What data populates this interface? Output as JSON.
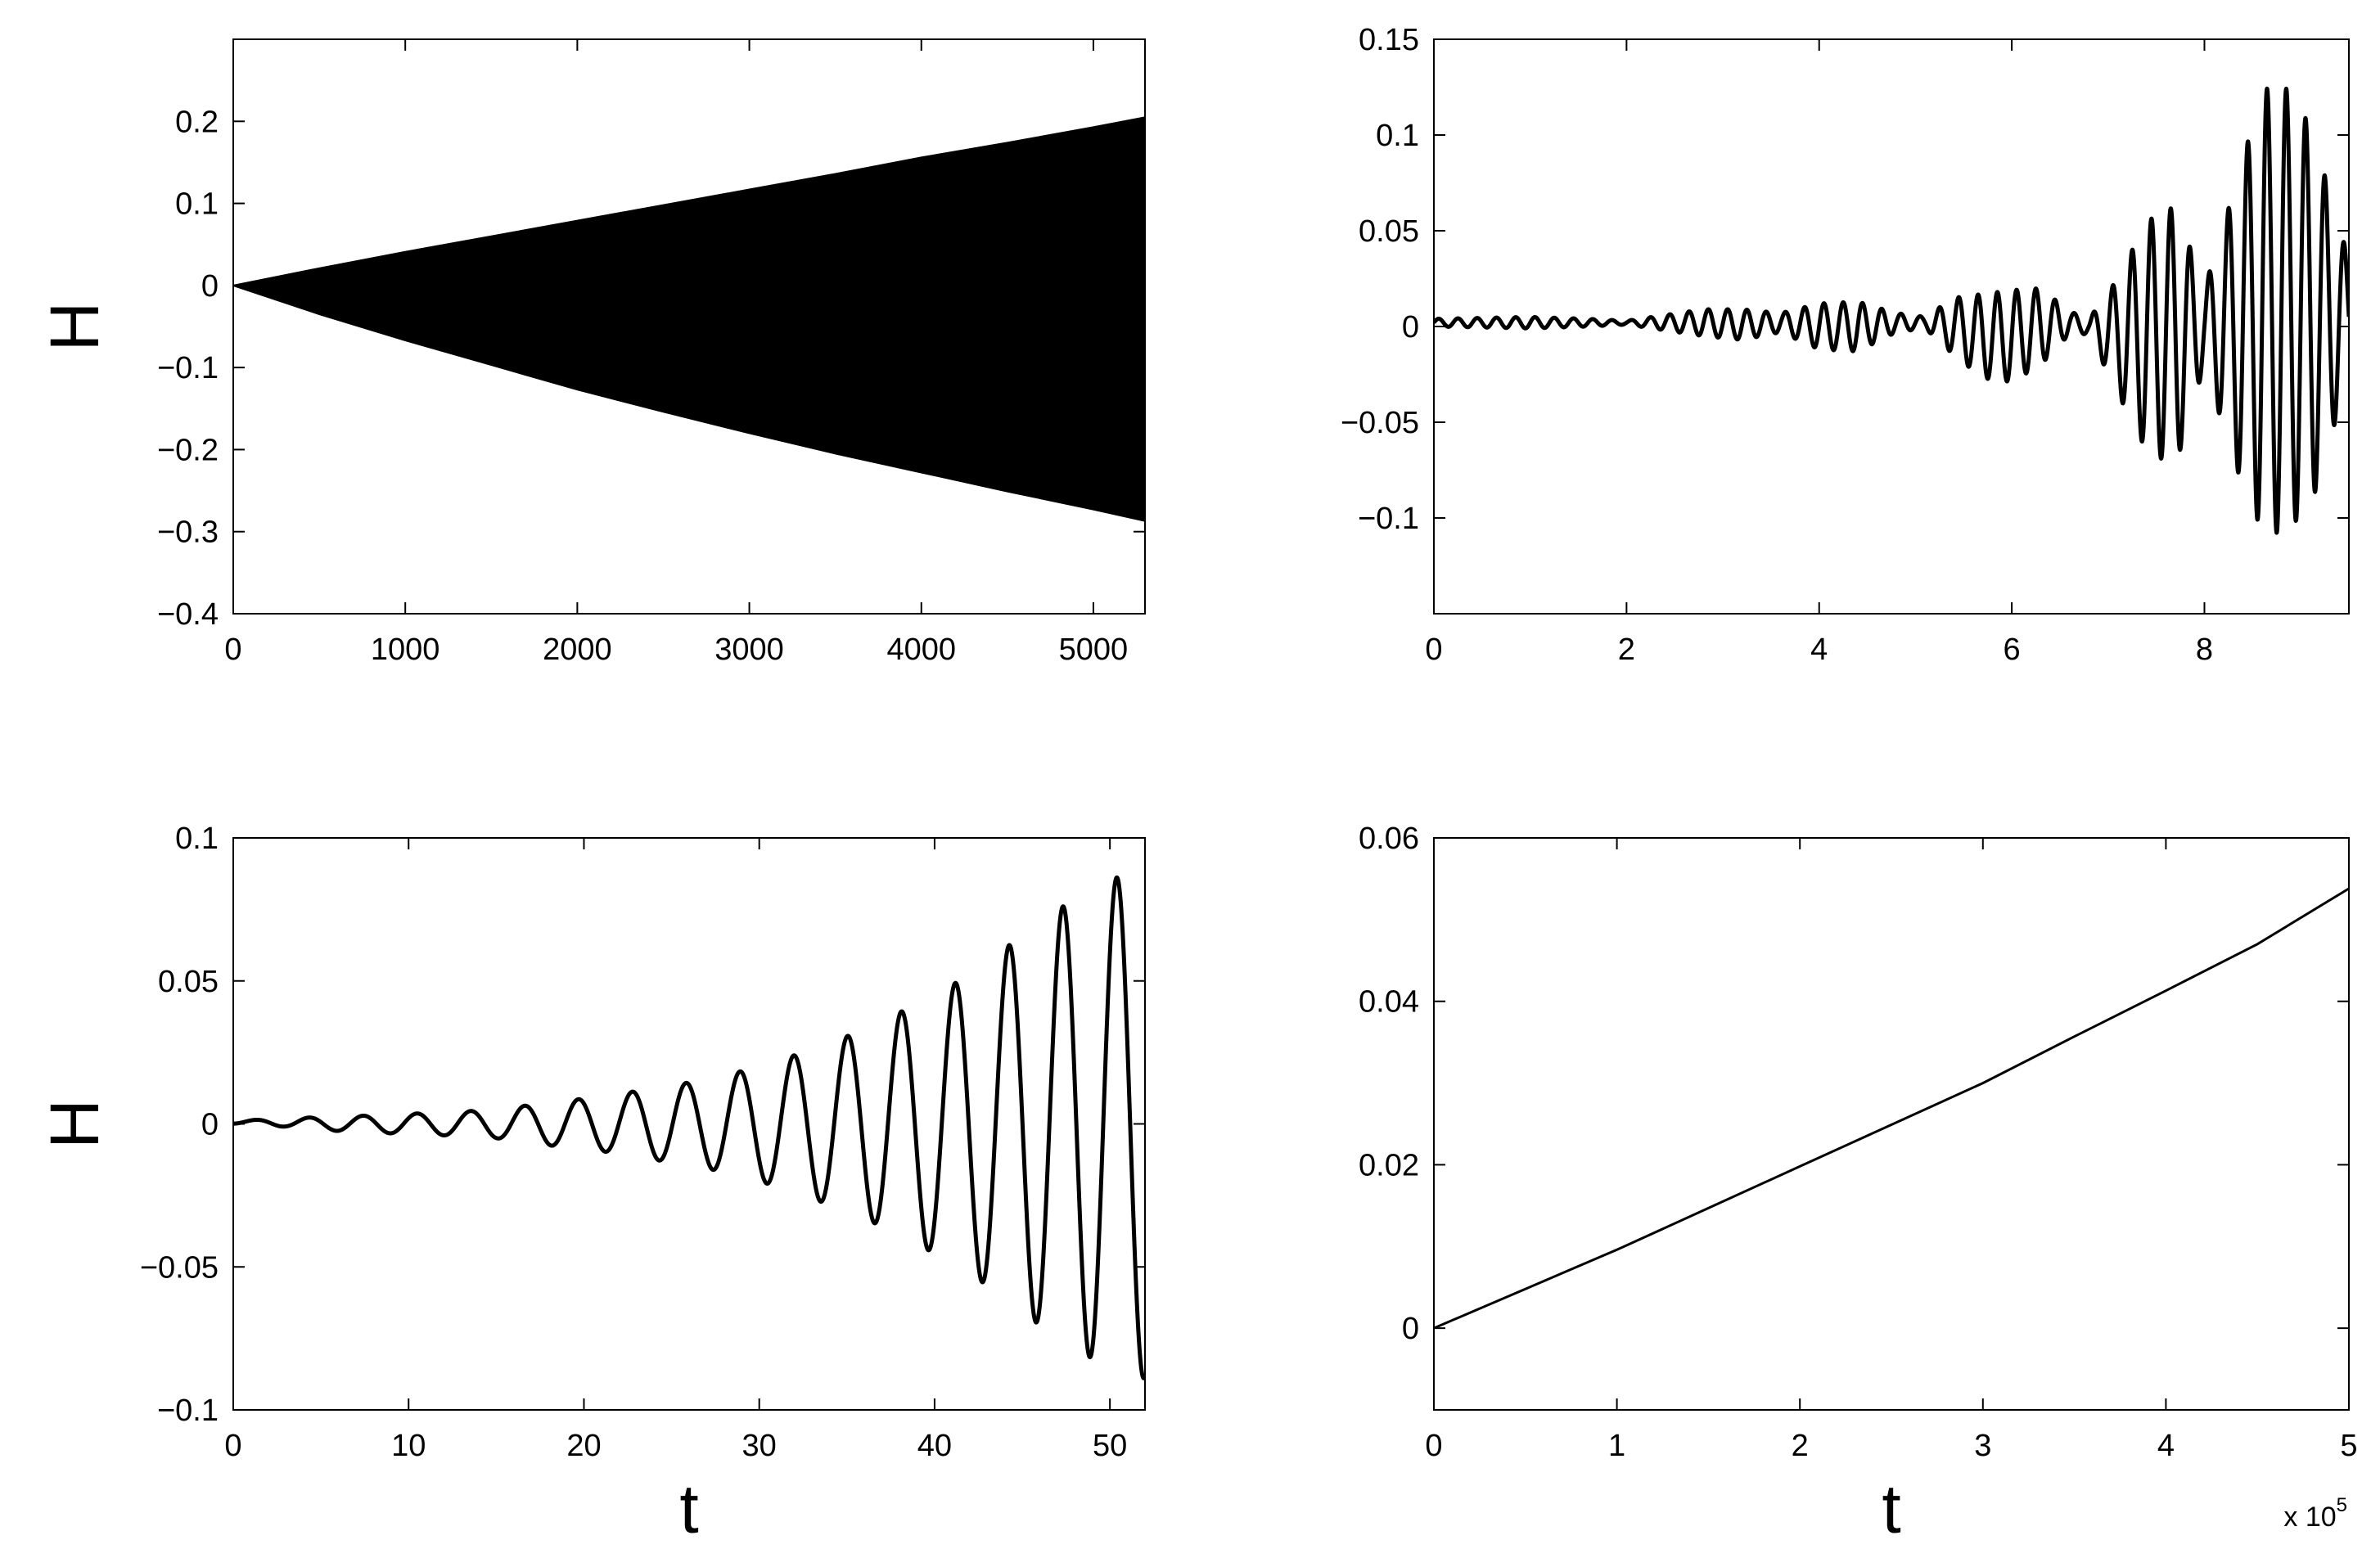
{
  "figure": {
    "panels": 4,
    "ylabel": "H",
    "xlabel": "t",
    "line_color": "#000000",
    "background": "#ffffff"
  },
  "chart_data": [
    {
      "id": "top-left",
      "type": "line",
      "style": "dense-oscillation-envelope",
      "xlim": [
        0,
        5300
      ],
      "ylim": [
        -0.4,
        0.3
      ],
      "xticks": [
        0,
        1000,
        2000,
        3000,
        4000,
        5000
      ],
      "xtick_labels": [
        "0",
        "1000",
        "2000",
        "3000",
        "4000",
        "5000"
      ],
      "yticks": [
        -0.4,
        -0.3,
        -0.2,
        -0.1,
        0,
        0.1,
        0.2
      ],
      "ytick_labels": [
        "−0.4",
        "−0.3",
        "−0.2",
        "−0.1",
        "0",
        "0.1",
        "0.2"
      ],
      "ylabel": "H",
      "xlabel": "",
      "envelope": {
        "x": [
          0,
          500,
          1000,
          1500,
          2000,
          2500,
          3000,
          3500,
          4000,
          4500,
          5000,
          5300
        ],
        "upper": [
          0.0,
          0.021,
          0.041,
          0.06,
          0.079,
          0.098,
          0.117,
          0.136,
          0.156,
          0.174,
          0.193,
          0.205
        ],
        "lower": [
          0.0,
          -0.035,
          -0.067,
          -0.097,
          -0.127,
          -0.154,
          -0.18,
          -0.205,
          -0.228,
          -0.251,
          -0.273,
          -0.287
        ]
      }
    },
    {
      "id": "top-right",
      "type": "line",
      "style": "oscillation",
      "xlim": [
        0,
        9.5
      ],
      "ylim": [
        -0.15,
        0.15
      ],
      "xticks": [
        0,
        2,
        4,
        6,
        8
      ],
      "xtick_labels": [
        "0",
        "2",
        "4",
        "6",
        "8"
      ],
      "yticks": [
        -0.1,
        -0.05,
        0,
        0.05,
        0.1,
        0.15
      ],
      "ytick_labels": [
        "−0.1",
        "−0.05",
        "0",
        "0.05",
        "0.1",
        "0.15"
      ],
      "ylabel": "",
      "xlabel": "",
      "signal": {
        "period": 0.2,
        "envelope_x": [
          0,
          1.0,
          1.6,
          2.0,
          2.4,
          2.8,
          3.2,
          3.6,
          4.0,
          4.4,
          4.8,
          5.1,
          5.4,
          5.7,
          6.0,
          6.3,
          6.6,
          6.8,
          7.1,
          7.4,
          7.7,
          8.0,
          8.3,
          8.6,
          8.8,
          9.1,
          9.5
        ],
        "envelope_amp": [
          0.002,
          0.003,
          0.002,
          0.001,
          0.004,
          0.007,
          0.008,
          0.005,
          0.012,
          0.013,
          0.005,
          0.003,
          0.015,
          0.022,
          0.024,
          0.02,
          0.006,
          0.004,
          0.03,
          0.06,
          0.068,
          0.02,
          0.07,
          0.115,
          0.118,
          0.1,
          0.03
        ],
        "envelope_bias": [
          0.002,
          0.002,
          0.002,
          0.002,
          0.002,
          0.002,
          0.001,
          0.002,
          0.0,
          0.0,
          0.002,
          0.002,
          0.0,
          -0.005,
          -0.005,
          0.0,
          0.002,
          0.0,
          -0.005,
          -0.005,
          -0.005,
          0.0,
          0.0,
          0.008,
          0.01,
          0.005,
          0.005
        ]
      }
    },
    {
      "id": "bottom-left",
      "type": "line",
      "style": "oscillation",
      "xlim": [
        0,
        52
      ],
      "ylim": [
        -0.1,
        0.1
      ],
      "xticks": [
        0,
        10,
        20,
        30,
        40,
        50
      ],
      "xtick_labels": [
        "0",
        "10",
        "20",
        "30",
        "40",
        "50"
      ],
      "yticks": [
        -0.1,
        -0.05,
        0,
        0.05,
        0.1
      ],
      "ytick_labels": [
        "−0.1",
        "−0.05",
        "0",
        "0.05",
        "0.1"
      ],
      "ylabel": "H",
      "xlabel": "t",
      "signal": {
        "period": 3.07,
        "phase_start": 0.5,
        "envelope_x": [
          0,
          3,
          6,
          9,
          12,
          15,
          18,
          21,
          24,
          27,
          30,
          33,
          36,
          39,
          42,
          45,
          48,
          51,
          52
        ],
        "envelope_amp": [
          0.0005,
          0.0015,
          0.0025,
          0.0033,
          0.004,
          0.005,
          0.0075,
          0.0095,
          0.0125,
          0.0155,
          0.02,
          0.026,
          0.033,
          0.042,
          0.052,
          0.066,
          0.079,
          0.088,
          0.089
        ],
        "envelope_bias": [
          0.0005,
          0.0005,
          0.0,
          0.0,
          0.0,
          0.0,
          0.0,
          0.0,
          0.0,
          0.0,
          0.0,
          0.0,
          0.0,
          0.0,
          0.0,
          0.0,
          0.0,
          0.0,
          0.0
        ]
      }
    },
    {
      "id": "bottom-right",
      "type": "line",
      "style": "smooth",
      "xlim": [
        0,
        5
      ],
      "ylim": [
        -0.01,
        0.06
      ],
      "xticks": [
        0,
        1,
        2,
        3,
        4,
        5
      ],
      "xtick_labels": [
        "0",
        "1",
        "2",
        "3",
        "4",
        "5"
      ],
      "yticks": [
        0,
        0.02,
        0.04,
        0.06
      ],
      "ytick_labels": [
        "0",
        "0.02",
        "0.04",
        "0.06"
      ],
      "ylabel": "",
      "xlabel": "t",
      "x_multiplier_text": "x 10",
      "x_multiplier_exponent": "5",
      "x": [
        0,
        0.5,
        1,
        1.5,
        2,
        2.5,
        3,
        3.5,
        4,
        4.5,
        5
      ],
      "y": [
        0.0,
        0.0048,
        0.0096,
        0.0147,
        0.0198,
        0.0249,
        0.03,
        0.0357,
        0.0413,
        0.047,
        0.0538
      ]
    }
  ]
}
